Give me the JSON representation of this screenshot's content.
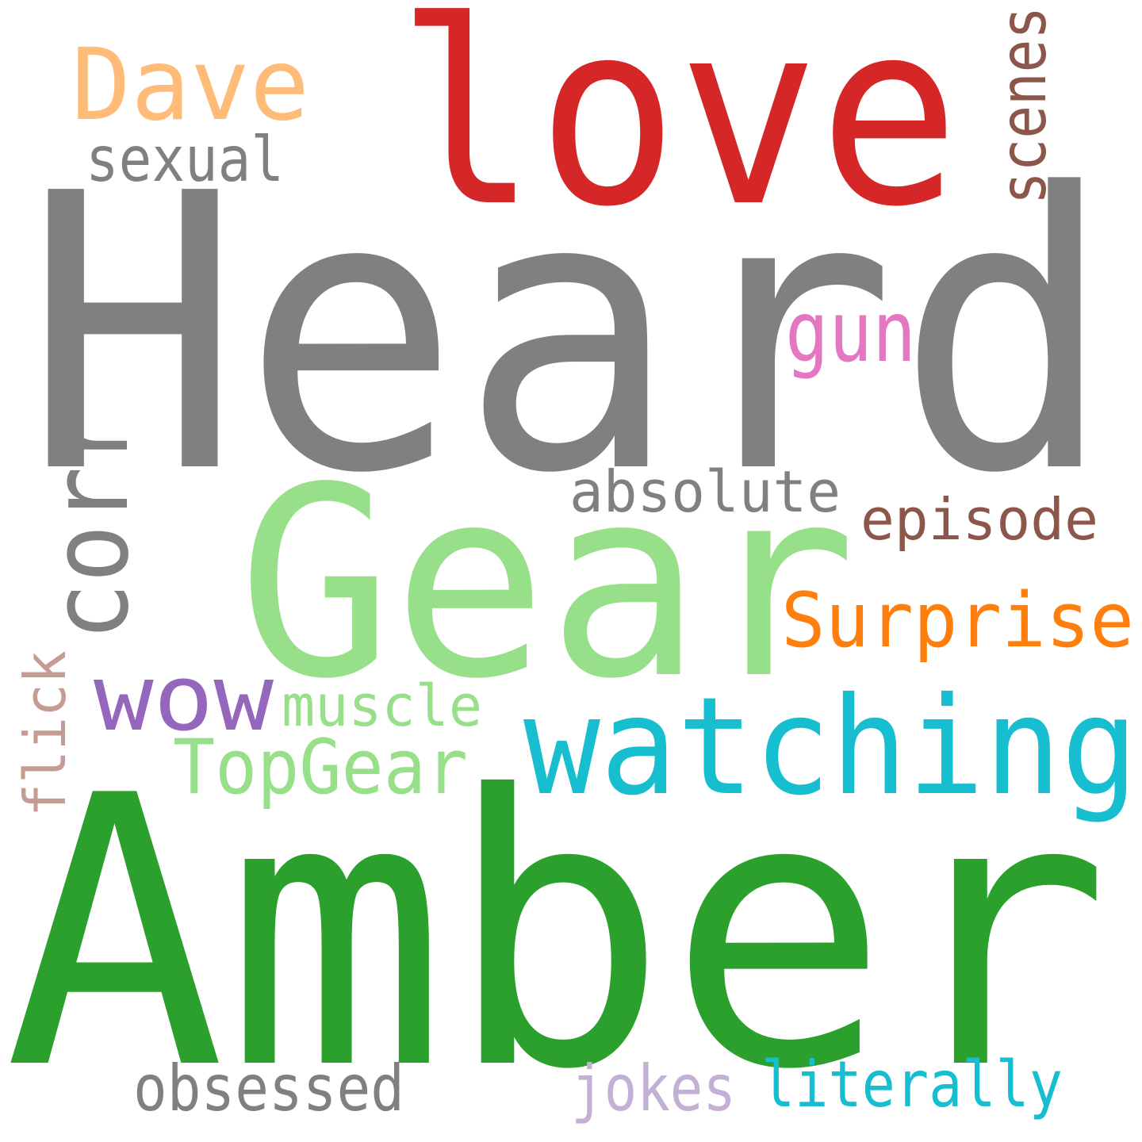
{
  "words": [
    {
      "text": "Heard",
      "color": "#808080"
    },
    {
      "text": "love",
      "color": "#d62728"
    },
    {
      "text": "Dave",
      "color": "#ffbb78"
    },
    {
      "text": "sexual",
      "color": "#808080"
    },
    {
      "text": "scenes",
      "color": "#8c564b"
    },
    {
      "text": "gun",
      "color": "#e377c2"
    },
    {
      "text": "corr",
      "color": "#808080"
    },
    {
      "text": "Gear",
      "color": "#98df8a"
    },
    {
      "text": "absolute",
      "color": "#808080"
    },
    {
      "text": "episode",
      "color": "#8c564b"
    },
    {
      "text": "Surprise",
      "color": "#ff7f0e"
    },
    {
      "text": "wow",
      "color": "#9467bd"
    },
    {
      "text": "muscle",
      "color": "#98df8a"
    },
    {
      "text": "watching",
      "color": "#17becf"
    },
    {
      "text": "TopGear",
      "color": "#98df8a"
    },
    {
      "text": "flick",
      "color": "#c49c94"
    },
    {
      "text": "Amber",
      "color": "#2ca02c"
    },
    {
      "text": "obsessed",
      "color": "#808080"
    },
    {
      "text": "jokes",
      "color": "#c5b0d5"
    },
    {
      "text": "literally",
      "color": "#17becf"
    }
  ]
}
